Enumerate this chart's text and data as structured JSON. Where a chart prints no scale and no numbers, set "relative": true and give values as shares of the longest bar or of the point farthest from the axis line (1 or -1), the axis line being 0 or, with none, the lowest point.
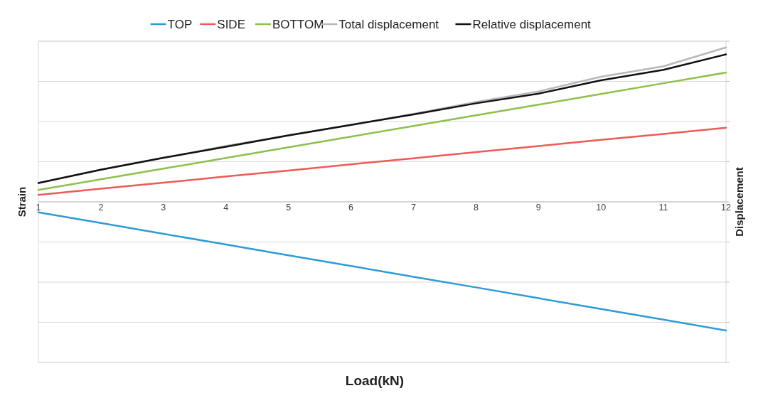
{
  "chart_data": {
    "type": "line",
    "xlabel": "Load(kN)",
    "ylabel": "Strain",
    "y2label": "Displacement",
    "relative": true,
    "grid": "y",
    "legend": "top",
    "marker": "none",
    "line_style": "solid",
    "categories": [
      "1",
      "2",
      "3",
      "4",
      "5",
      "6",
      "7",
      "8",
      "9",
      "10",
      "11",
      "12"
    ],
    "series": [
      {
        "name": "TOP",
        "color": "#2e9bd6",
        "values": [
          -0.068,
          -0.137,
          -0.207,
          -0.276,
          -0.346,
          -0.415,
          -0.485,
          -0.554,
          -0.624,
          -0.694,
          -0.763,
          -0.833
        ]
      },
      {
        "name": "SIDE",
        "color": "#ee5a55",
        "values": [
          0.045,
          0.085,
          0.124,
          0.164,
          0.203,
          0.243,
          0.282,
          0.322,
          0.361,
          0.401,
          0.44,
          0.48
        ]
      },
      {
        "name": "BOTTOM",
        "color": "#8dc04b",
        "values": [
          0.077,
          0.146,
          0.215,
          0.284,
          0.353,
          0.422,
          0.491,
          0.56,
          0.629,
          0.698,
          0.768,
          0.837
        ]
      },
      {
        "name": "Total displacement",
        "color": "#b8b8b8",
        "values": [
          0.122,
          0.208,
          0.285,
          0.362,
          0.43,
          0.498,
          0.57,
          0.647,
          0.715,
          0.81,
          0.878,
          1
        ]
      },
      {
        "name": "Relative displacement",
        "color": "#111111",
        "values": [
          0.122,
          0.208,
          0.285,
          0.357,
          0.43,
          0.498,
          0.566,
          0.638,
          0.701,
          0.787,
          0.855,
          0.955
        ]
      }
    ]
  }
}
